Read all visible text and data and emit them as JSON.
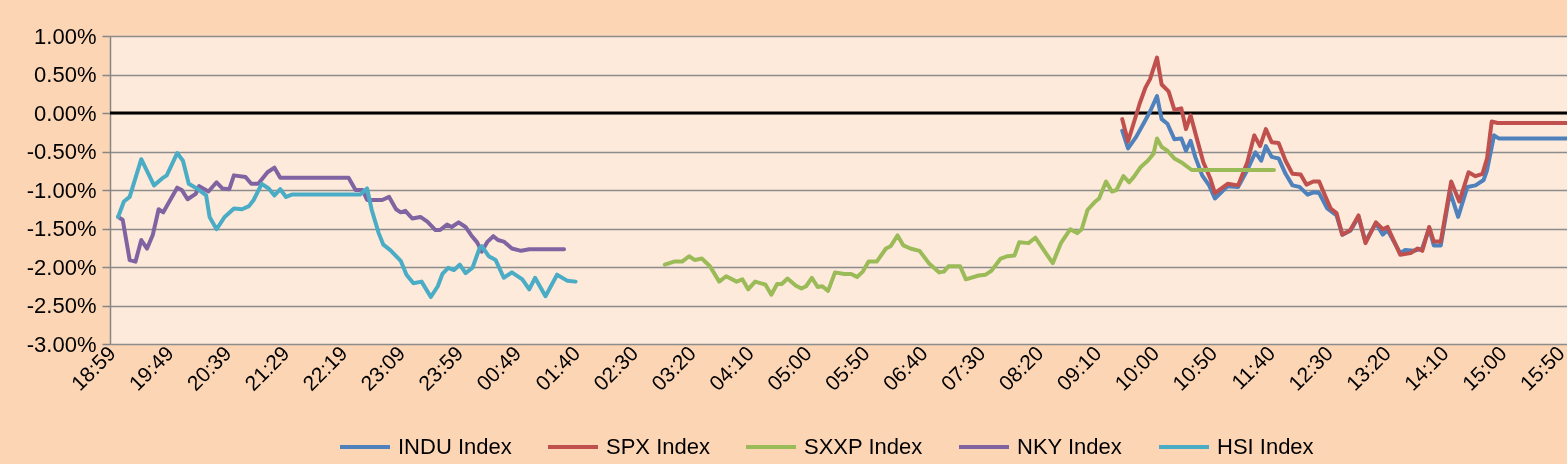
{
  "chart_data": {
    "type": "line",
    "xlim": [
      "2000-01-01T18:57",
      "2000-01-02T15:55"
    ],
    "xticks": [
      {
        "value": "2000-01-01T18:59",
        "label": "18:59"
      },
      {
        "value": "2000-01-01T19:49",
        "label": "19:49"
      },
      {
        "value": "2000-01-01T20:39",
        "label": "20:39"
      },
      {
        "value": "2000-01-01T21:29",
        "label": "21:29"
      },
      {
        "value": "2000-01-01T22:19",
        "label": "22:19"
      },
      {
        "value": "2000-01-01T23:09",
        "label": "23:09"
      },
      {
        "value": "2000-01-01T23:59",
        "label": "23:59"
      },
      {
        "value": "2000-01-02T00:49",
        "label": "00:49"
      },
      {
        "value": "2000-01-02T01:40",
        "label": "01:40"
      },
      {
        "value": "2000-01-02T02:30",
        "label": "02:30"
      },
      {
        "value": "2000-01-02T03:20",
        "label": "03:20"
      },
      {
        "value": "2000-01-02T04:10",
        "label": "04:10"
      },
      {
        "value": "2000-01-02T05:00",
        "label": "05:00"
      },
      {
        "value": "2000-01-02T05:50",
        "label": "05:50"
      },
      {
        "value": "2000-01-02T06:40",
        "label": "06:40"
      },
      {
        "value": "2000-01-02T07:30",
        "label": "07:30"
      },
      {
        "value": "2000-01-02T08:20",
        "label": "08:20"
      },
      {
        "value": "2000-01-02T09:10",
        "label": "09:10"
      },
      {
        "value": "2000-01-02T10:00",
        "label": "10:00"
      },
      {
        "value": "2000-01-02T10:50",
        "label": "10:50"
      },
      {
        "value": "2000-01-02T11:40",
        "label": "11:40"
      },
      {
        "value": "2000-01-02T12:30",
        "label": "12:30"
      },
      {
        "value": "2000-01-02T13:20",
        "label": "13:20"
      },
      {
        "value": "2000-01-02T14:10",
        "label": "14:10"
      },
      {
        "value": "2000-01-02T15:00",
        "label": "15:00"
      },
      {
        "value": "2000-01-02T15:50",
        "label": "15:50"
      }
    ],
    "ylim": [
      -3,
      1
    ],
    "yticks": [
      {
        "value": -3,
        "label": "-3.00%"
      },
      {
        "value": -2.5,
        "label": "-2.50%"
      },
      {
        "value": -2,
        "label": "-2.00%"
      },
      {
        "value": -1.5,
        "label": "-1.50%"
      },
      {
        "value": -1,
        "label": "-1.00%"
      },
      {
        "value": -0.5,
        "label": "-0.50%"
      },
      {
        "value": 0,
        "label": "0.00%"
      },
      {
        "value": 0.5,
        "label": "0.50%"
      },
      {
        "value": 1,
        "label": "1.00%"
      }
    ],
    "grid": "y",
    "legend": "bottom",
    "line_style": "solid",
    "ref_lines": [
      {
        "axis": "y",
        "value": 0,
        "color": "#000000"
      }
    ],
    "series": [
      {
        "name": "INDU Index",
        "color": "#4f81bd",
        "x": [
          "2000-01-02T09:31",
          "2000-01-02T09:36",
          "2000-01-02T09:43",
          "2000-01-02T09:50",
          "2000-01-02T09:55",
          "2000-01-02T10:01",
          "2000-01-02T10:05",
          "2000-01-02T10:10",
          "2000-01-02T10:16",
          "2000-01-02T10:22",
          "2000-01-02T10:26",
          "2000-01-02T10:30",
          "2000-01-02T10:34",
          "2000-01-02T10:40",
          "2000-01-02T10:46",
          "2000-01-02T10:51",
          "2000-01-02T11:02",
          "2000-01-02T11:11",
          "2000-01-02T11:19",
          "2000-01-02T11:26",
          "2000-01-02T11:31",
          "2000-01-02T11:35",
          "2000-01-02T11:40",
          "2000-01-02T11:46",
          "2000-01-02T11:52",
          "2000-01-02T11:58",
          "2000-01-02T12:04",
          "2000-01-02T12:11",
          "2000-01-02T12:16",
          "2000-01-02T12:21",
          "2000-01-02T12:28",
          "2000-01-02T12:36",
          "2000-01-02T12:41",
          "2000-01-02T12:48",
          "2000-01-02T12:55",
          "2000-01-02T13:01",
          "2000-01-02T13:10",
          "2000-01-02T13:16",
          "2000-01-02T13:20",
          "2000-01-02T13:31",
          "2000-01-02T13:35",
          "2000-01-02T13:43",
          "2000-01-02T13:50",
          "2000-01-02T13:56",
          "2000-01-02T14:00",
          "2000-01-02T14:06",
          "2000-01-02T14:14",
          "2000-01-02T14:21",
          "2000-01-02T14:29",
          "2000-01-02T14:36",
          "2000-01-02T14:43",
          "2000-01-02T14:46",
          "2000-01-02T14:52",
          "2000-01-02T14:56",
          "2000-01-02T15:55"
        ],
        "values": [
          -0.23,
          -0.46,
          -0.31,
          -0.12,
          0.02,
          0.22,
          -0.08,
          -0.14,
          -0.34,
          -0.33,
          -0.49,
          -0.36,
          -0.57,
          -0.81,
          -0.94,
          -1.11,
          -0.95,
          -0.96,
          -0.74,
          -0.51,
          -0.62,
          -0.43,
          -0.57,
          -0.59,
          -0.79,
          -0.94,
          -0.96,
          -1.06,
          -1.03,
          -1.04,
          -1.24,
          -1.33,
          -1.58,
          -1.53,
          -1.35,
          -1.67,
          -1.43,
          -1.58,
          -1.52,
          -1.82,
          -1.78,
          -1.79,
          -1.76,
          -1.5,
          -1.72,
          -1.72,
          -1.02,
          -1.35,
          -0.96,
          -0.94,
          -0.87,
          -0.74,
          -0.29,
          -0.33,
          -0.33
        ]
      },
      {
        "name": "SPX Index",
        "color": "#c0504d",
        "x": [
          "2000-01-02T09:31",
          "2000-01-02T09:36",
          "2000-01-02T09:46",
          "2000-01-02T09:51",
          "2000-01-02T09:55",
          "2000-01-02T10:01",
          "2000-01-02T10:05",
          "2000-01-02T10:11",
          "2000-01-02T10:16",
          "2000-01-02T10:22",
          "2000-01-02T10:26",
          "2000-01-02T10:30",
          "2000-01-02T10:35",
          "2000-01-02T10:41",
          "2000-01-02T10:47",
          "2000-01-02T10:51",
          "2000-01-02T11:02",
          "2000-01-02T11:11",
          "2000-01-02T11:19",
          "2000-01-02T11:25",
          "2000-01-02T11:30",
          "2000-01-02T11:35",
          "2000-01-02T11:40",
          "2000-01-02T11:46",
          "2000-01-02T11:52",
          "2000-01-02T11:58",
          "2000-01-02T12:05",
          "2000-01-02T12:10",
          "2000-01-02T12:16",
          "2000-01-02T12:21",
          "2000-01-02T12:26",
          "2000-01-02T12:31",
          "2000-01-02T12:36",
          "2000-01-02T12:41",
          "2000-01-02T12:48",
          "2000-01-02T12:55",
          "2000-01-02T13:01",
          "2000-01-02T13:10",
          "2000-01-02T13:16",
          "2000-01-02T13:20",
          "2000-01-02T13:31",
          "2000-01-02T13:40",
          "2000-01-02T13:46",
          "2000-01-02T13:50",
          "2000-01-02T13:56",
          "2000-01-02T14:00",
          "2000-01-02T14:06",
          "2000-01-02T14:15",
          "2000-01-02T14:22",
          "2000-01-02T14:30",
          "2000-01-02T14:36",
          "2000-01-02T14:42",
          "2000-01-02T14:46",
          "2000-01-02T14:50",
          "2000-01-02T14:55",
          "2000-01-02T15:55"
        ],
        "values": [
          -0.08,
          -0.37,
          0.12,
          0.33,
          0.44,
          0.72,
          0.37,
          0.28,
          0.04,
          0.06,
          -0.21,
          -0.03,
          -0.31,
          -0.64,
          -0.85,
          -1.04,
          -0.92,
          -0.94,
          -0.64,
          -0.29,
          -0.43,
          -0.21,
          -0.38,
          -0.39,
          -0.62,
          -0.79,
          -0.8,
          -0.93,
          -0.89,
          -0.89,
          -1.07,
          -1.24,
          -1.3,
          -1.58,
          -1.52,
          -1.33,
          -1.69,
          -1.42,
          -1.51,
          -1.48,
          -1.84,
          -1.82,
          -1.76,
          -1.79,
          -1.48,
          -1.67,
          -1.67,
          -0.89,
          -1.15,
          -0.77,
          -0.82,
          -0.79,
          -0.59,
          -0.11,
          -0.13,
          -0.13
        ]
      },
      {
        "name": "SXXP Index",
        "color": "#9bbb59",
        "x": [
          "2000-01-02T02:56",
          "2000-01-02T03:04",
          "2000-01-02T03:11",
          "2000-01-02T03:17",
          "2000-01-02T03:22",
          "2000-01-02T03:28",
          "2000-01-02T03:35",
          "2000-01-02T03:43",
          "2000-01-02T03:49",
          "2000-01-02T03:58",
          "2000-01-02T04:03",
          "2000-01-02T04:08",
          "2000-01-02T04:14",
          "2000-01-02T04:23",
          "2000-01-02T04:28",
          "2000-01-02T04:33",
          "2000-01-02T04:37",
          "2000-01-02T04:42",
          "2000-01-02T04:49",
          "2000-01-02T04:54",
          "2000-01-02T04:58",
          "2000-01-02T05:03",
          "2000-01-02T05:08",
          "2000-01-02T05:12",
          "2000-01-02T05:17",
          "2000-01-02T05:23",
          "2000-01-02T05:31",
          "2000-01-02T05:37",
          "2000-01-02T05:42",
          "2000-01-02T05:47",
          "2000-01-02T05:52",
          "2000-01-02T05:59",
          "2000-01-02T06:07",
          "2000-01-02T06:11",
          "2000-01-02T06:17",
          "2000-01-02T06:22",
          "2000-01-02T06:28",
          "2000-01-02T06:36",
          "2000-01-02T06:44",
          "2000-01-02T06:53",
          "2000-01-02T06:57",
          "2000-01-02T07:01",
          "2000-01-02T07:11",
          "2000-01-02T07:16",
          "2000-01-02T07:27",
          "2000-01-02T07:33",
          "2000-01-02T07:38",
          "2000-01-02T07:46",
          "2000-01-02T07:52",
          "2000-01-02T07:58",
          "2000-01-02T08:02",
          "2000-01-02T08:10",
          "2000-01-02T08:16",
          "2000-01-02T08:25",
          "2000-01-02T08:31",
          "2000-01-02T08:38",
          "2000-01-02T08:46",
          "2000-01-02T08:52",
          "2000-01-02T08:56",
          "2000-01-02T09:01",
          "2000-01-02T09:07",
          "2000-01-02T09:11",
          "2000-01-02T09:17",
          "2000-01-02T09:22",
          "2000-01-02T09:26",
          "2000-01-02T09:32",
          "2000-01-02T09:37",
          "2000-01-02T09:41",
          "2000-01-02T09:47",
          "2000-01-02T09:53",
          "2000-01-02T09:58",
          "2000-01-02T10:01",
          "2000-01-02T10:05",
          "2000-01-02T10:10",
          "2000-01-02T10:16",
          "2000-01-02T10:23",
          "2000-01-02T10:31",
          "2000-01-02T11:42"
        ],
        "values": [
          -1.97,
          -1.93,
          -1.93,
          -1.86,
          -1.91,
          -1.89,
          -1.99,
          -2.19,
          -2.12,
          -2.19,
          -2.16,
          -2.29,
          -2.19,
          -2.23,
          -2.36,
          -2.22,
          -2.22,
          -2.15,
          -2.24,
          -2.28,
          -2.25,
          -2.14,
          -2.26,
          -2.25,
          -2.31,
          -2.07,
          -2.09,
          -2.09,
          -2.13,
          -2.06,
          -1.93,
          -1.93,
          -1.76,
          -1.73,
          -1.59,
          -1.72,
          -1.76,
          -1.79,
          -1.95,
          -2.07,
          -2.06,
          -1.99,
          -1.99,
          -2.16,
          -2.11,
          -2.1,
          -2.05,
          -1.89,
          -1.86,
          -1.85,
          -1.68,
          -1.69,
          -1.62,
          -1.82,
          -1.95,
          -1.69,
          -1.51,
          -1.56,
          -1.51,
          -1.26,
          -1.16,
          -1.11,
          -0.89,
          -1.02,
          -1.0,
          -0.82,
          -0.9,
          -0.83,
          -0.7,
          -0.62,
          -0.53,
          -0.33,
          -0.44,
          -0.49,
          -0.59,
          -0.65,
          -0.74,
          -0.74
        ]
      },
      {
        "name": "NKY Index",
        "color": "#8064a2",
        "x": [
          "2000-01-01T19:04",
          "2000-01-01T19:08",
          "2000-01-01T19:14",
          "2000-01-01T19:19",
          "2000-01-01T19:24",
          "2000-01-01T19:29",
          "2000-01-01T19:34",
          "2000-01-01T19:39",
          "2000-01-01T19:43",
          "2000-01-01T19:55",
          "2000-01-01T19:59",
          "2000-01-01T20:04",
          "2000-01-01T20:11",
          "2000-01-01T20:14",
          "2000-01-01T20:22",
          "2000-01-01T20:29",
          "2000-01-01T20:34",
          "2000-01-01T20:40",
          "2000-01-01T20:44",
          "2000-01-01T20:54",
          "2000-01-01T20:59",
          "2000-01-01T21:05",
          "2000-01-01T21:13",
          "2000-01-01T21:19",
          "2000-01-01T21:24",
          "2000-01-01T22:23",
          "2000-01-01T22:29",
          "2000-01-01T22:35",
          "2000-01-01T22:39",
          "2000-01-01T22:52",
          "2000-01-01T22:58",
          "2000-01-01T23:04",
          "2000-01-01T23:08",
          "2000-01-01T23:12",
          "2000-01-01T23:18",
          "2000-01-01T23:25",
          "2000-01-01T23:31",
          "2000-01-01T23:38",
          "2000-01-01T23:42",
          "2000-01-01T23:48",
          "2000-01-01T23:52",
          "2000-01-01T23:58",
          "2000-01-02T00:04",
          "2000-01-02T00:09",
          "2000-01-02T00:14",
          "2000-01-02T00:18",
          "2000-01-02T00:23",
          "2000-01-02T00:28",
          "2000-01-02T00:32",
          "2000-01-02T00:37",
          "2000-01-02T00:44",
          "2000-01-02T00:52",
          "2000-01-02T00:59",
          "2000-01-02T01:29"
        ],
        "values": [
          -1.35,
          -1.39,
          -1.91,
          -1.93,
          -1.65,
          -1.76,
          -1.58,
          -1.25,
          -1.29,
          -0.97,
          -1.0,
          -1.12,
          -1.05,
          -0.95,
          -1.02,
          -0.9,
          -0.98,
          -0.99,
          -0.81,
          -0.83,
          -0.92,
          -0.92,
          -0.77,
          -0.71,
          -0.84,
          -0.84,
          -1.0,
          -1.0,
          -1.13,
          -1.13,
          -1.09,
          -1.25,
          -1.29,
          -1.27,
          -1.37,
          -1.35,
          -1.41,
          -1.52,
          -1.52,
          -1.45,
          -1.48,
          -1.42,
          -1.48,
          -1.59,
          -1.68,
          -1.8,
          -1.67,
          -1.6,
          -1.65,
          -1.67,
          -1.76,
          -1.79,
          -1.77,
          -1.77
        ]
      },
      {
        "name": "HSI Index",
        "color": "#4bacc6",
        "x": [
          "2000-01-01T19:04",
          "2000-01-01T19:09",
          "2000-01-01T19:14",
          "2000-01-01T19:24",
          "2000-01-01T19:35",
          "2000-01-01T19:42",
          "2000-01-01T19:46",
          "2000-01-01T19:55",
          "2000-01-01T20:00",
          "2000-01-01T20:05",
          "2000-01-01T20:12",
          "2000-01-01T20:20",
          "2000-01-01T20:23",
          "2000-01-01T20:29",
          "2000-01-01T20:36",
          "2000-01-01T20:44",
          "2000-01-01T20:51",
          "2000-01-01T20:57",
          "2000-01-01T21:01",
          "2000-01-01T21:08",
          "2000-01-01T21:14",
          "2000-01-01T21:19",
          "2000-01-01T21:24",
          "2000-01-01T21:29",
          "2000-01-01T21:34",
          "2000-01-01T22:33",
          "2000-01-01T22:39",
          "2000-01-01T22:43",
          "2000-01-01T22:49",
          "2000-01-01T22:53",
          "2000-01-01T22:59",
          "2000-01-01T23:08",
          "2000-01-01T23:13",
          "2000-01-01T23:19",
          "2000-01-01T23:26",
          "2000-01-01T23:34",
          "2000-01-01T23:40",
          "2000-01-01T23:44",
          "2000-01-01T23:49",
          "2000-01-01T23:54",
          "2000-01-01T23:59",
          "2000-01-02T00:04",
          "2000-01-02T00:10",
          "2000-01-02T00:16",
          "2000-01-02T00:18",
          "2000-01-02T00:24",
          "2000-01-02T00:30",
          "2000-01-02T00:37",
          "2000-01-02T00:44",
          "2000-01-02T00:53",
          "2000-01-02T00:59",
          "2000-01-02T01:04",
          "2000-01-02T01:13",
          "2000-01-02T01:23",
          "2000-01-02T01:32",
          "2000-01-02T01:39"
        ],
        "values": [
          -1.35,
          -1.15,
          -1.09,
          -0.6,
          -0.94,
          -0.85,
          -0.81,
          -0.52,
          -0.62,
          -0.92,
          -0.98,
          -1.07,
          -1.35,
          -1.51,
          -1.35,
          -1.24,
          -1.25,
          -1.21,
          -1.13,
          -0.92,
          -0.98,
          -1.07,
          -0.99,
          -1.09,
          -1.06,
          -1.06,
          -0.98,
          -1.26,
          -1.56,
          -1.71,
          -1.78,
          -1.92,
          -2.1,
          -2.21,
          -2.19,
          -2.39,
          -2.25,
          -2.09,
          -2.01,
          -2.04,
          -1.97,
          -2.08,
          -2.01,
          -1.76,
          -1.73,
          -1.86,
          -1.91,
          -2.14,
          -2.07,
          -2.16,
          -2.29,
          -2.14,
          -2.38,
          -2.1,
          -2.18,
          -2.19
        ]
      }
    ]
  }
}
